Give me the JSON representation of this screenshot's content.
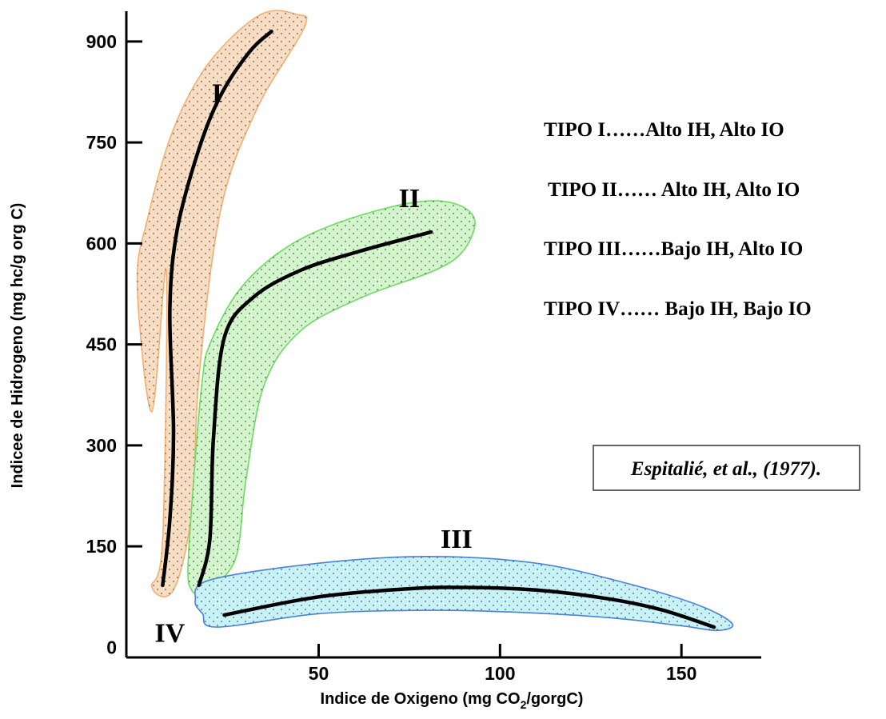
{
  "chart_data": {
    "type": "line",
    "xlabel_prefix": "Indice de Oxigeno (mg CO",
    "xlabel_sub": "2",
    "xlabel_suffix": "/gorgC)",
    "ylabel": "Indicee de Hidrogeno  (mg hc/g org C)",
    "xlim": [
      -3,
      172
    ],
    "ylim": [
      -15,
      945
    ],
    "x_ticks": [
      {
        "value": 50,
        "label": "50"
      },
      {
        "value": 100,
        "label": "100"
      },
      {
        "value": 150,
        "label": "150"
      }
    ],
    "y_ticks": [
      {
        "value": 0,
        "label": "0",
        "tick": false
      },
      {
        "value": 150,
        "label": "150",
        "tick": true
      },
      {
        "value": 300,
        "label": "300",
        "tick": true
      },
      {
        "value": 450,
        "label": "450",
        "tick": true
      },
      {
        "value": 600,
        "label": "600",
        "tick": true
      },
      {
        "value": 750,
        "label": "750",
        "tick": true
      },
      {
        "value": 900,
        "label": "900",
        "tick": true
      }
    ],
    "series": [
      {
        "name": "I",
        "fill": "#f9ddc3",
        "stroke": "#f2b070",
        "points": [
          [
            7,
            92
          ],
          [
            9,
            190
          ],
          [
            10,
            320
          ],
          [
            9,
            500
          ],
          [
            11,
            620
          ],
          [
            17,
            740
          ],
          [
            23,
            820
          ],
          [
            31,
            885
          ],
          [
            37,
            915
          ]
        ],
        "band": [
          [
            8,
            560
          ],
          [
            7,
            160
          ],
          [
            4,
            90
          ],
          [
            10,
            85
          ],
          [
            15,
            200
          ],
          [
            17,
            400
          ],
          [
            23,
            650
          ],
          [
            33,
            800
          ],
          [
            46,
            920
          ],
          [
            44,
            940
          ],
          [
            34,
            940
          ],
          [
            20,
            870
          ],
          [
            10,
            770
          ],
          [
            3,
            640
          ],
          [
            0,
            540
          ],
          [
            4,
            350
          ],
          [
            8,
            560
          ]
        ]
      },
      {
        "name": "II",
        "fill": "#d3f5cc",
        "stroke": "#6edb64",
        "points": [
          [
            17,
            92
          ],
          [
            20,
            160
          ],
          [
            21,
            310
          ],
          [
            24,
            460
          ],
          [
            32,
            520
          ],
          [
            45,
            560
          ],
          [
            61,
            588
          ],
          [
            81,
            617
          ]
        ],
        "band": [
          [
            17,
            80
          ],
          [
            19,
            85
          ],
          [
            27,
            130
          ],
          [
            30,
            250
          ],
          [
            35,
            390
          ],
          [
            45,
            470
          ],
          [
            62,
            520
          ],
          [
            82,
            560
          ],
          [
            90,
            590
          ],
          [
            93,
            635
          ],
          [
            87,
            660
          ],
          [
            75,
            660
          ],
          [
            55,
            630
          ],
          [
            40,
            590
          ],
          [
            28,
            530
          ],
          [
            20,
            450
          ],
          [
            18,
            400
          ],
          [
            16,
            280
          ],
          [
            14,
            120
          ],
          [
            15,
            85
          ],
          [
            17,
            80
          ]
        ]
      },
      {
        "name": "III",
        "fill": "#c7f2f8",
        "stroke": "#4a82d8",
        "points": [
          [
            24,
            48
          ],
          [
            50,
            75
          ],
          [
            75,
            87
          ],
          [
            90,
            89
          ],
          [
            110,
            85
          ],
          [
            130,
            72
          ],
          [
            145,
            55
          ],
          [
            159,
            30
          ]
        ],
        "band": [
          [
            22,
            30
          ],
          [
            50,
            50
          ],
          [
            80,
            55
          ],
          [
            105,
            52
          ],
          [
            130,
            44
          ],
          [
            150,
            32
          ],
          [
            160,
            25
          ],
          [
            164,
            35
          ],
          [
            155,
            62
          ],
          [
            135,
            95
          ],
          [
            110,
            125
          ],
          [
            80,
            135
          ],
          [
            50,
            125
          ],
          [
            20,
            100
          ],
          [
            16,
            70
          ],
          [
            18,
            50
          ],
          [
            22,
            30
          ]
        ]
      }
    ],
    "labels": [
      {
        "text": "I",
        "x": 22,
        "y": 810
      },
      {
        "text": "II",
        "x": 75,
        "y": 654
      },
      {
        "text": "III",
        "x": 88,
        "y": 148
      },
      {
        "text": "IV",
        "x": 9,
        "y": 8
      }
    ]
  },
  "legend": {
    "lines": [
      "TIPO I……Alto IH, Alto IO",
      "TIPO II…… Alto IH, Alto IO",
      "TIPO III……Bajo IH, Alto IO",
      "TIPO IV…… Bajo IH, Bajo IO"
    ]
  },
  "citation": "Espitalié, et  al.,  (1977).",
  "colors": {
    "axis": "#000000",
    "curve": "#000000",
    "dot": "#555555"
  }
}
